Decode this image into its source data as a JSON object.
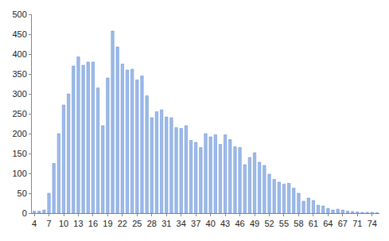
{
  "chart_data": {
    "type": "bar",
    "categories": [
      "4",
      null,
      null,
      "7",
      null,
      null,
      "10",
      null,
      null,
      "13",
      null,
      null,
      "16",
      null,
      null,
      "19",
      null,
      null,
      "22",
      null,
      null,
      "25",
      null,
      null,
      "28",
      null,
      null,
      "31",
      null,
      null,
      "34",
      null,
      null,
      "37",
      null,
      null,
      "40",
      null,
      null,
      "43",
      null,
      null,
      "46",
      null,
      null,
      "49",
      null,
      null,
      "52",
      null,
      null,
      "55",
      null,
      null,
      "58",
      null,
      null,
      "61",
      null,
      null,
      "64",
      null,
      null,
      "67",
      null,
      null,
      "71",
      null,
      null,
      "74",
      null
    ],
    "values": [
      5,
      5,
      8,
      50,
      125,
      200,
      272,
      300,
      370,
      393,
      372,
      380,
      380,
      315,
      220,
      340,
      458,
      418,
      375,
      360,
      362,
      335,
      345,
      295,
      240,
      255,
      260,
      242,
      240,
      215,
      213,
      220,
      183,
      178,
      165,
      200,
      192,
      197,
      173,
      197,
      185,
      167,
      165,
      122,
      140,
      152,
      128,
      120,
      98,
      85,
      78,
      73,
      75,
      63,
      50,
      30,
      38,
      32,
      20,
      18,
      12,
      8,
      10,
      8,
      5,
      4,
      3,
      2,
      2,
      2,
      1
    ],
    "color": "#9dbbe8",
    "ylim": [
      0,
      500
    ],
    "yticks": [
      0,
      50,
      100,
      150,
      200,
      250,
      300,
      350,
      400,
      450,
      500
    ],
    "grid": false
  }
}
